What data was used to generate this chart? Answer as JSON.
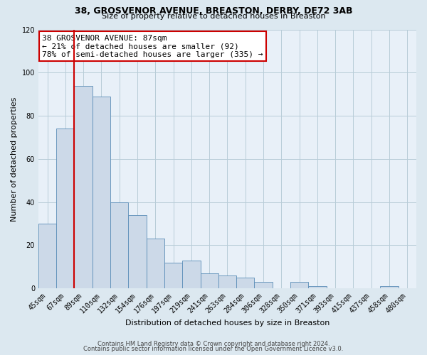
{
  "title1": "38, GROSVENOR AVENUE, BREASTON, DERBY, DE72 3AB",
  "title2": "Size of property relative to detached houses in Breaston",
  "xlabel": "Distribution of detached houses by size in Breaston",
  "ylabel": "Number of detached properties",
  "bar_labels": [
    "45sqm",
    "67sqm",
    "89sqm",
    "110sqm",
    "132sqm",
    "154sqm",
    "176sqm",
    "197sqm",
    "219sqm",
    "241sqm",
    "263sqm",
    "284sqm",
    "306sqm",
    "328sqm",
    "350sqm",
    "371sqm",
    "393sqm",
    "415sqm",
    "437sqm",
    "458sqm",
    "480sqm"
  ],
  "bar_values": [
    30,
    74,
    94,
    89,
    40,
    34,
    23,
    12,
    13,
    7,
    6,
    5,
    3,
    0,
    3,
    1,
    0,
    0,
    0,
    1,
    0
  ],
  "bar_color": "#ccd9e8",
  "bar_edge_color": "#5b8db8",
  "highlight_bar_idx": 2,
  "highlight_color": "#cc0000",
  "annotation_line1": "38 GROSVENOR AVENUE: 87sqm",
  "annotation_line2": "← 21% of detached houses are smaller (92)",
  "annotation_line3": "78% of semi-detached houses are larger (335) →",
  "annotation_box_color": "#ffffff",
  "annotation_box_edge": "#cc0000",
  "ylim": [
    0,
    120
  ],
  "yticks": [
    0,
    20,
    40,
    60,
    80,
    100,
    120
  ],
  "footer1": "Contains HM Land Registry data © Crown copyright and database right 2024.",
  "footer2": "Contains public sector information licensed under the Open Government Licence v3.0.",
  "bg_color": "#dce8f0",
  "plot_bg_color": "#e8f0f8",
  "grid_color": "#b8ccd8",
  "title1_fontsize": 9,
  "title2_fontsize": 8,
  "ylabel_fontsize": 8,
  "xlabel_fontsize": 8,
  "tick_fontsize": 7,
  "footer_fontsize": 6,
  "ann_fontsize": 8
}
